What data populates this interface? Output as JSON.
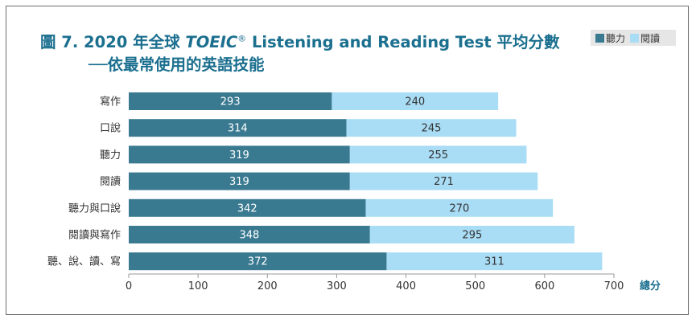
{
  "chart_data": {
    "type": "bar",
    "orientation": "horizontal",
    "stacked": true,
    "title_prefix": "圖 7. 2020 年全球 ",
    "title_brand": "TOEIC",
    "title_reg": "®",
    "title_suffix": " Listening and Reading Test 平均分數",
    "subtitle": "──依最常使用的英語技能",
    "categories": [
      "寫作",
      "口說",
      "聽力",
      "閱讀",
      "聽力與口說",
      "閱讀與寫作",
      "聽、說、讀、寫"
    ],
    "series": [
      {
        "name": "聽力",
        "color": "#3a7a91",
        "values": [
          293,
          314,
          319,
          319,
          342,
          348,
          372
        ]
      },
      {
        "name": "閱讀",
        "color": "#a9dcf5",
        "values": [
          240,
          245,
          255,
          271,
          270,
          295,
          311
        ]
      }
    ],
    "xlabel": "總分",
    "xlim": [
      0,
      700
    ],
    "xticks": [
      0,
      100,
      200,
      300,
      400,
      500,
      600,
      700
    ],
    "legend_position": "top-right",
    "grid": false,
    "colors": {
      "title": "#1b6f8f",
      "axis": "#999999",
      "label": "#333333"
    }
  }
}
